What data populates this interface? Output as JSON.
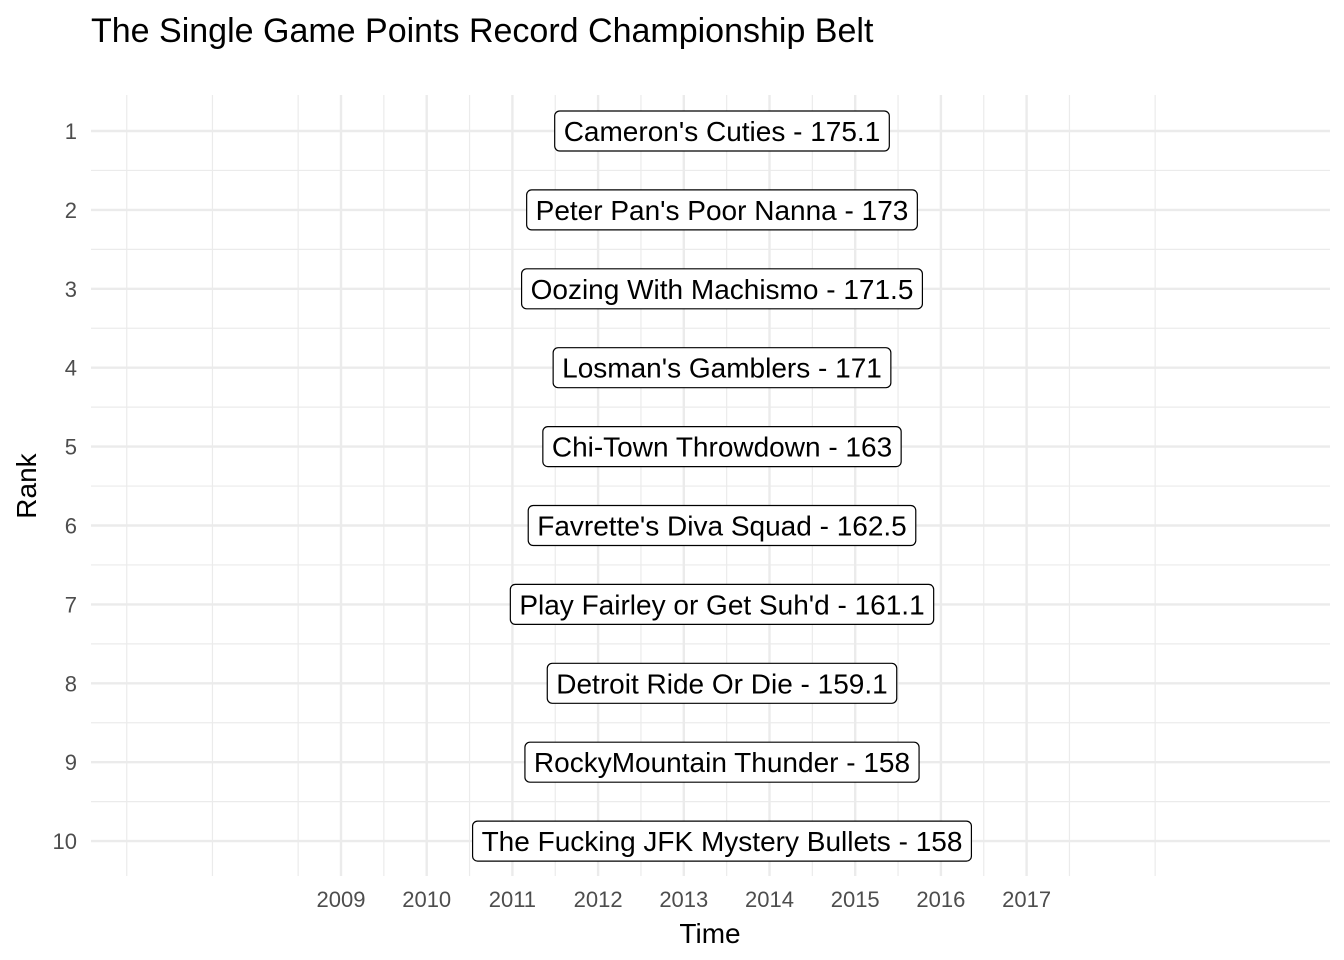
{
  "chart_data": {
    "type": "label",
    "title": "The Single Game Points Record Championship Belt",
    "xlabel": "Time",
    "ylabel": "Rank",
    "x_ticks": [
      "2009",
      "2010",
      "2011",
      "2012",
      "2013",
      "2014",
      "2015",
      "2016",
      "2017"
    ],
    "y_ticks": [
      "1",
      "2",
      "3",
      "4",
      "5",
      "6",
      "7",
      "8",
      "9",
      "10"
    ],
    "ylim": [
      10.5,
      0.5
    ],
    "grid": true,
    "background": "#ffffff",
    "grid_color": "#ebebeb",
    "labels": [
      {
        "rank": 1,
        "team": "Cameron's Cuties",
        "points": 175.1,
        "text": "Cameron's Cuties - 175.1"
      },
      {
        "rank": 2,
        "team": "Peter Pan's Poor Nanna",
        "points": 173,
        "text": "Peter Pan's Poor Nanna - 173"
      },
      {
        "rank": 3,
        "team": "Oozing With Machismo",
        "points": 171.5,
        "text": "Oozing With Machismo - 171.5"
      },
      {
        "rank": 4,
        "team": "Losman's Gamblers",
        "points": 171,
        "text": "Losman's Gamblers - 171"
      },
      {
        "rank": 5,
        "team": "Chi-Town Throwdown",
        "points": 163,
        "text": "Chi-Town Throwdown - 163"
      },
      {
        "rank": 6,
        "team": "Favrette's Diva Squad",
        "points": 162.5,
        "text": "Favrette's Diva Squad - 162.5"
      },
      {
        "rank": 7,
        "team": "Play Fairley or Get Suh'd",
        "points": 161.1,
        "text": "Play Fairley or Get Suh'd - 161.1"
      },
      {
        "rank": 8,
        "team": "Detroit Ride Or Die",
        "points": 159.1,
        "text": "Detroit Ride Or Die - 159.1"
      },
      {
        "rank": 9,
        "team": "RockyMountain Thunder",
        "points": 158,
        "text": "RockyMountain Thunder - 158"
      },
      {
        "rank": 10,
        "team": "The Fucking JFK Mystery Bullets",
        "points": 158,
        "text": "The Fucking JFK Mystery Bullets - 158"
      }
    ]
  }
}
